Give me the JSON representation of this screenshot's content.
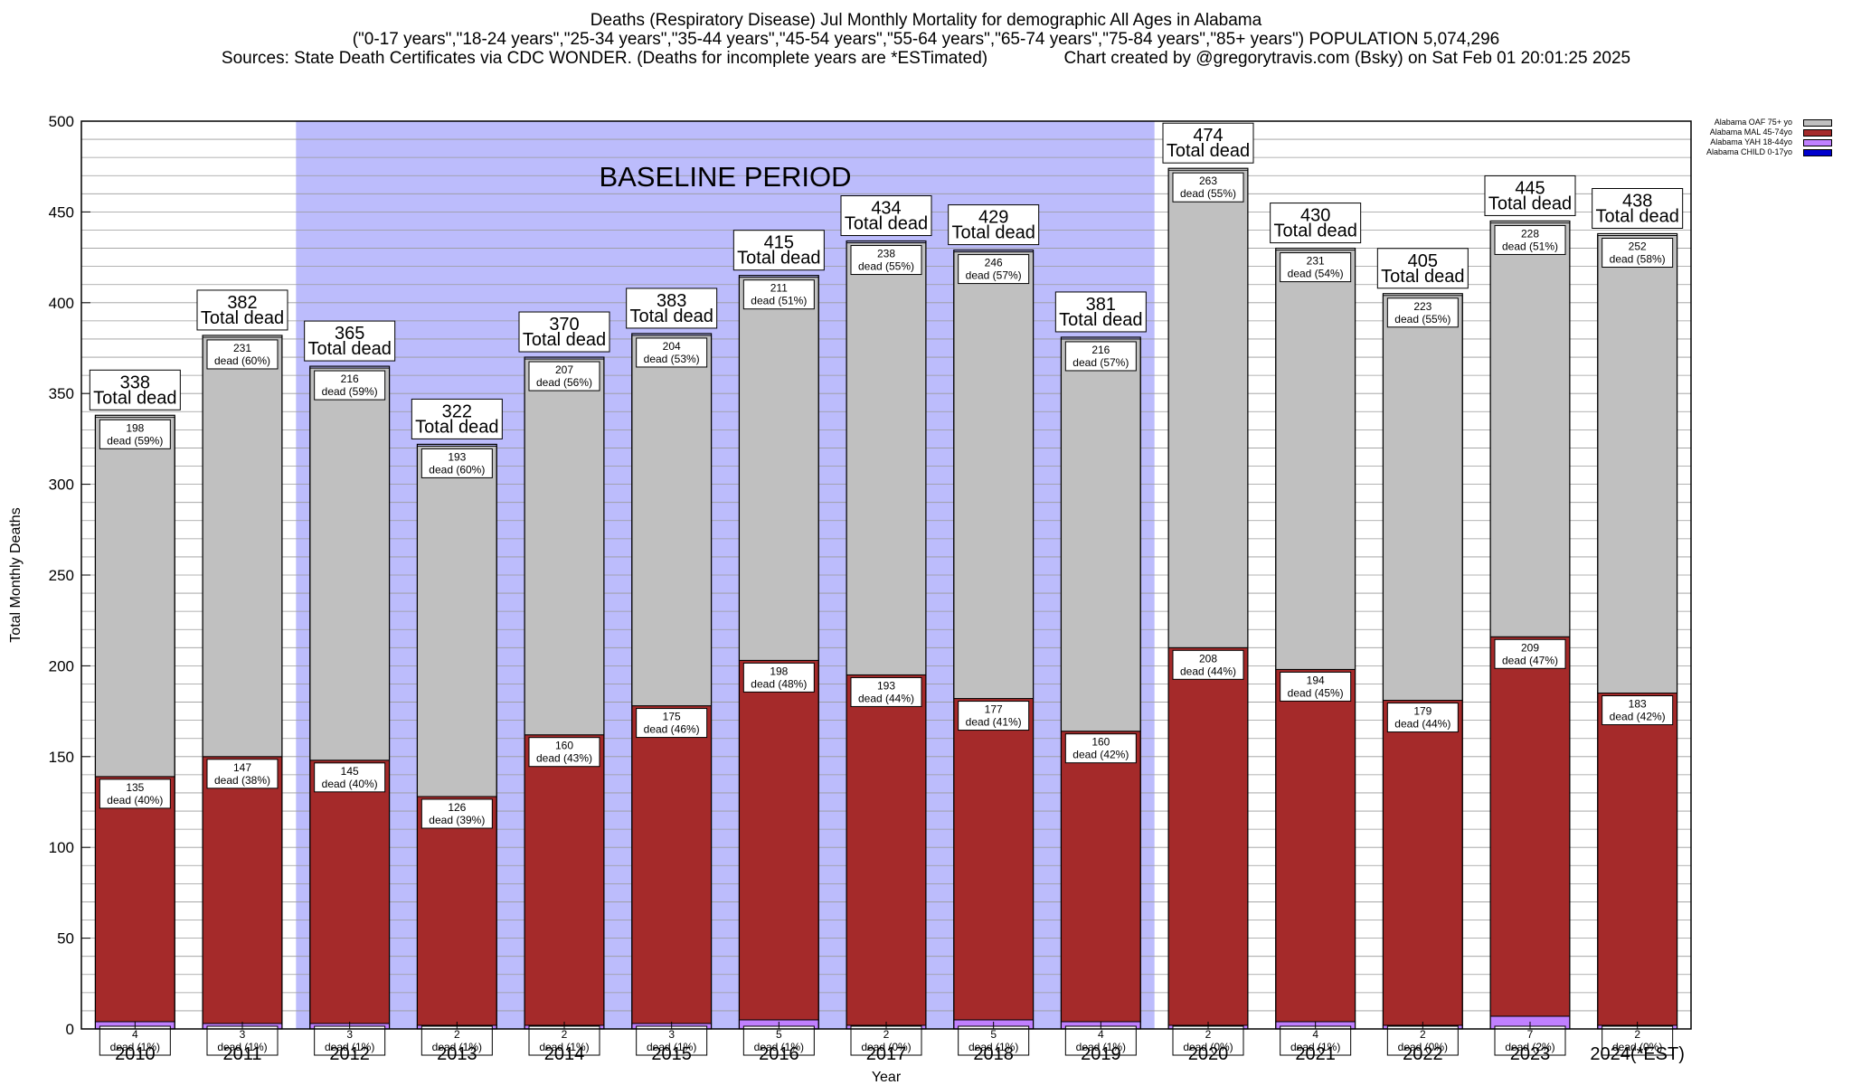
{
  "header": {
    "line1": "Deaths (Respiratory Disease) Jul Monthly Mortality for demographic All Ages in Alabama",
    "line2": "(\"0-17 years\",\"18-24 years\",\"25-34 years\",\"35-44 years\",\"45-54 years\",\"55-64 years\",\"65-74 years\",\"75-84 years\",\"85+ years\") POPULATION 5,074,296",
    "line3": "Sources: State Death Certificates via CDC WONDER. (Deaths for incomplete years are *ESTimated)                Chart created by @gregorytravis.com (Bsky) on Sat Feb 01 20:01:25 2025"
  },
  "chart_data": {
    "type": "bar",
    "stacked": true,
    "xlabel": "Year",
    "ylabel": "Total Monthly Deaths",
    "ylim": [
      0,
      500
    ],
    "yticks": [
      0,
      50,
      100,
      150,
      200,
      250,
      300,
      350,
      400,
      450,
      500
    ],
    "baseline_label": "BASELINE PERIOD",
    "baseline_range": [
      "2012",
      "2019"
    ],
    "total_suffix": "Total dead",
    "dead_word": "dead",
    "categories": [
      "2010",
      "2011",
      "2012",
      "2013",
      "2014",
      "2015",
      "2016",
      "2017",
      "2018",
      "2019",
      "2020",
      "2021",
      "2022",
      "2023",
      "2024(*EST)"
    ],
    "totals": [
      338,
      382,
      365,
      322,
      370,
      383,
      415,
      434,
      429,
      381,
      474,
      430,
      405,
      445,
      438
    ],
    "series": [
      {
        "name": "Alabama CHILD 0-17yo",
        "color": "#0000cc",
        "values": [
          0,
          0,
          0,
          0,
          0,
          0,
          0,
          0,
          0,
          0,
          0,
          0,
          0,
          0,
          0
        ],
        "pct": []
      },
      {
        "name": "Alabama YAH 18-44yo",
        "color": "#c080ff",
        "values": [
          4,
          3,
          3,
          2,
          2,
          3,
          5,
          2,
          5,
          4,
          2,
          4,
          2,
          7,
          2
        ],
        "pct": [
          "1%",
          "1%",
          "1%",
          "1%",
          "1%",
          "1%",
          "1%",
          "0%",
          "1%",
          "1%",
          "0%",
          "1%",
          "0%",
          "2%",
          "0%"
        ]
      },
      {
        "name": "Alabama MAL 45-74yo",
        "color": "#a52a2a",
        "values": [
          135,
          147,
          145,
          126,
          160,
          175,
          198,
          193,
          177,
          160,
          208,
          194,
          179,
          209,
          183
        ],
        "pct": [
          "40%",
          "38%",
          "40%",
          "39%",
          "43%",
          "46%",
          "48%",
          "44%",
          "41%",
          "42%",
          "44%",
          "45%",
          "44%",
          "47%",
          "42%"
        ]
      },
      {
        "name": "Alabama OAF 75+ yo",
        "color": "#c0c0c0",
        "values": [
          198,
          231,
          216,
          193,
          207,
          204,
          211,
          238,
          246,
          216,
          263,
          231,
          223,
          228,
          252
        ],
        "pct": [
          "59%",
          "60%",
          "59%",
          "60%",
          "56%",
          "53%",
          "51%",
          "55%",
          "57%",
          "57%",
          "55%",
          "54%",
          "55%",
          "51%",
          "58%"
        ]
      }
    ],
    "legend_position": "top-right",
    "grid": true
  }
}
